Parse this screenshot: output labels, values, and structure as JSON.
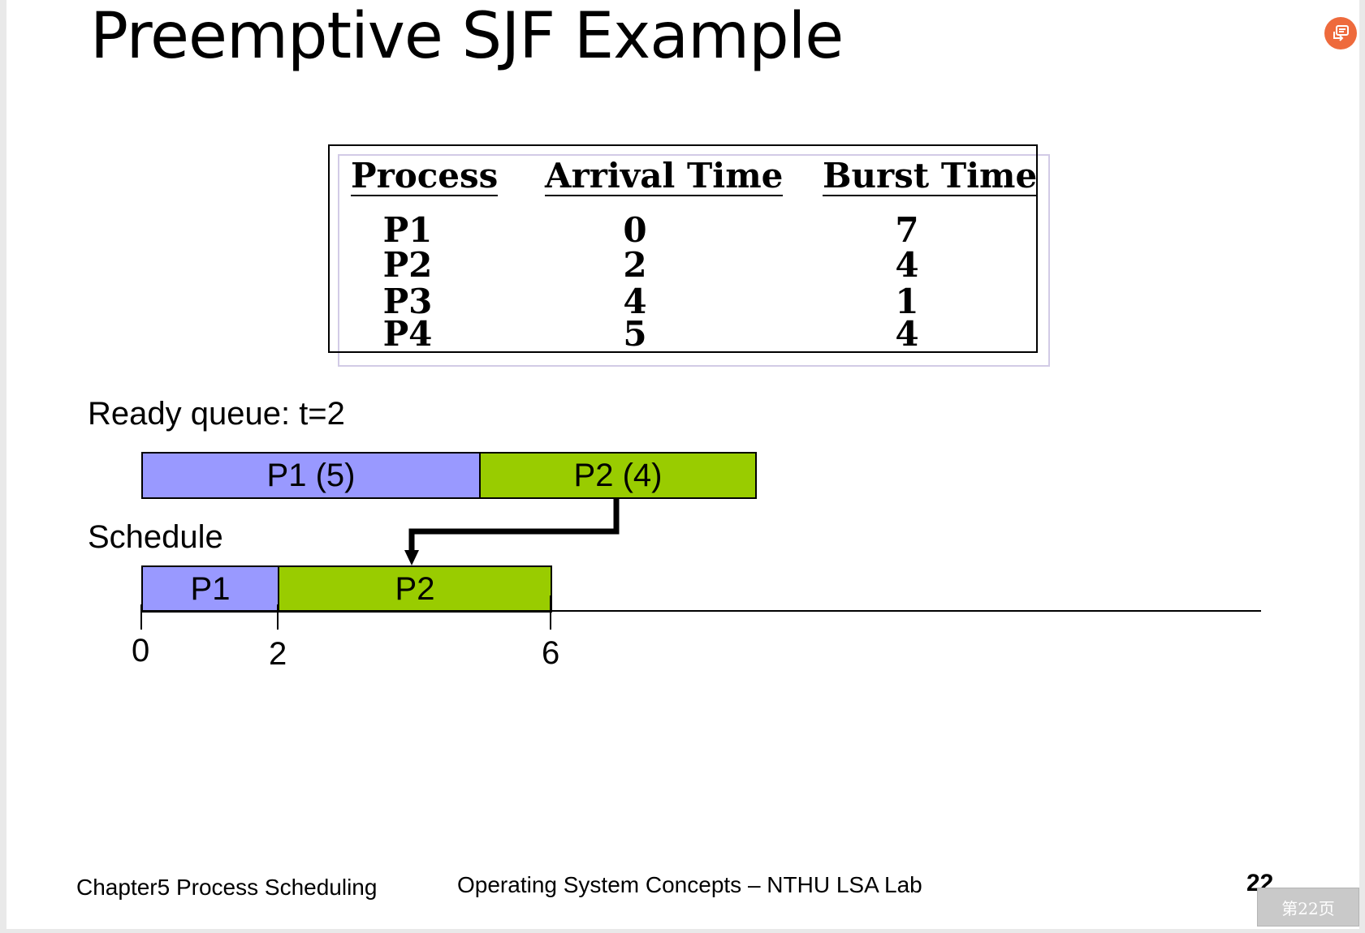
{
  "slide": {
    "title": "Preemptive SJF Example",
    "table": {
      "headers": [
        "Process",
        "Arrival Time",
        "Burst Time"
      ],
      "rows": [
        [
          "P1",
          "0",
          "7"
        ],
        [
          "P2",
          "2",
          "4"
        ],
        [
          "P3",
          "4",
          "1"
        ],
        [
          "P4",
          "5",
          "4"
        ]
      ]
    },
    "ready_queue": {
      "label": "Ready queue: t=2",
      "items": [
        {
          "label": "P1 (5)",
          "color": "#9999ff"
        },
        {
          "label": "P2 (4)",
          "color": "#99cc00"
        }
      ]
    },
    "schedule": {
      "label": "Schedule",
      "blocks": [
        {
          "label": "P1",
          "color": "#9999ff",
          "start": 0,
          "end": 2
        },
        {
          "label": "P2",
          "color": "#99cc00",
          "start": 2,
          "end": 6
        }
      ],
      "ticks": [
        "0",
        "2",
        "6"
      ]
    },
    "footer": {
      "chapter": "Chapter5 Process Scheduling",
      "course": "Operating System Concepts – NTHU LSA Lab",
      "page_number": "22"
    }
  },
  "viewer": {
    "page_indicator": "第22页",
    "share_icon": "share-icon",
    "share_color": "#ee6a3c"
  }
}
